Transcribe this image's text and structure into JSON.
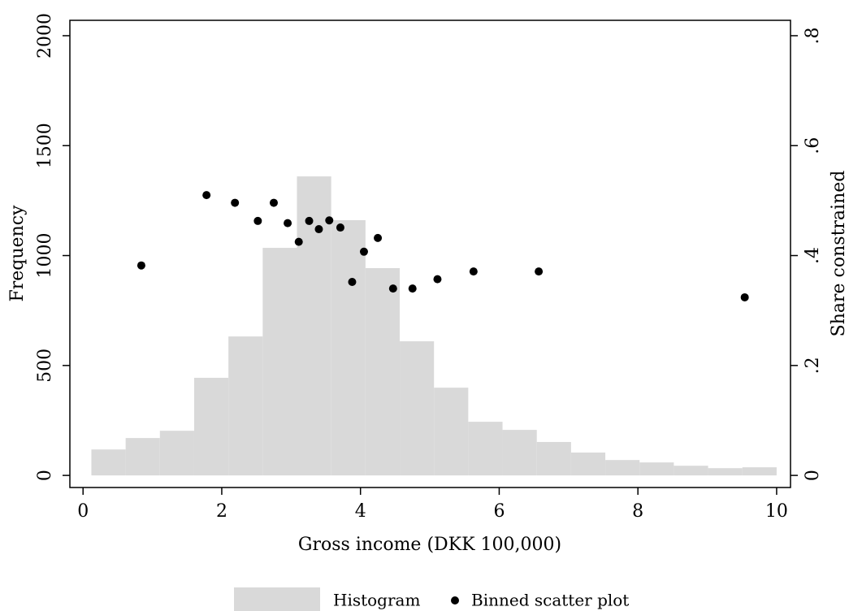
{
  "chart_data": {
    "type": "histogram",
    "x_label": "Gross income (DKK 100,000)",
    "y_label": "Frequency",
    "y2_label": "Share constrained",
    "xlim": [
      -0.19,
      10.2
    ],
    "ylim": [
      -55,
      2070
    ],
    "y2lim": [
      -0.022,
      0.828
    ],
    "xticks": [
      0,
      2,
      4,
      6,
      8,
      10
    ],
    "yticks": [
      0,
      500,
      1000,
      1500,
      2000
    ],
    "y2ticks": [
      0,
      {
        "value": 0.2,
        "label": ".2"
      },
      {
        "value": 0.4,
        "label": ".4"
      },
      {
        "value": 0.6,
        "label": ".6"
      },
      {
        "value": 0.8,
        "label": ".8"
      }
    ],
    "legend": "bottom",
    "series": [
      {
        "name": "Histogram",
        "type": "histogram",
        "color": "#d9d9d9",
        "bins": [
          0.12,
          0.614,
          1.108,
          1.602,
          2.096,
          2.59,
          3.084,
          3.578,
          4.072,
          4.566,
          5.06,
          5.554,
          6.048,
          6.542,
          7.036,
          7.53,
          8.024,
          8.518,
          9.012,
          9.506,
          10.0
        ],
        "values": [
          118,
          170,
          203,
          444,
          632,
          1035,
          1360,
          1161,
          943,
          610,
          399,
          244,
          207,
          152,
          104,
          70,
          59,
          44,
          33,
          37
        ]
      },
      {
        "name": "Binned scatter plot",
        "type": "scatter",
        "color": "#000000",
        "axis": "y2",
        "x": [
          0.84,
          1.78,
          2.19,
          2.52,
          2.75,
          2.95,
          3.11,
          3.26,
          3.4,
          3.55,
          3.71,
          3.88,
          4.05,
          4.25,
          4.47,
          4.75,
          5.11,
          5.63,
          6.57,
          9.54
        ],
        "values": [
          0.382,
          0.51,
          0.496,
          0.463,
          0.496,
          0.459,
          0.425,
          0.463,
          0.448,
          0.464,
          0.451,
          0.352,
          0.407,
          0.432,
          0.34,
          0.34,
          0.357,
          0.371,
          0.371,
          0.324
        ]
      }
    ]
  }
}
